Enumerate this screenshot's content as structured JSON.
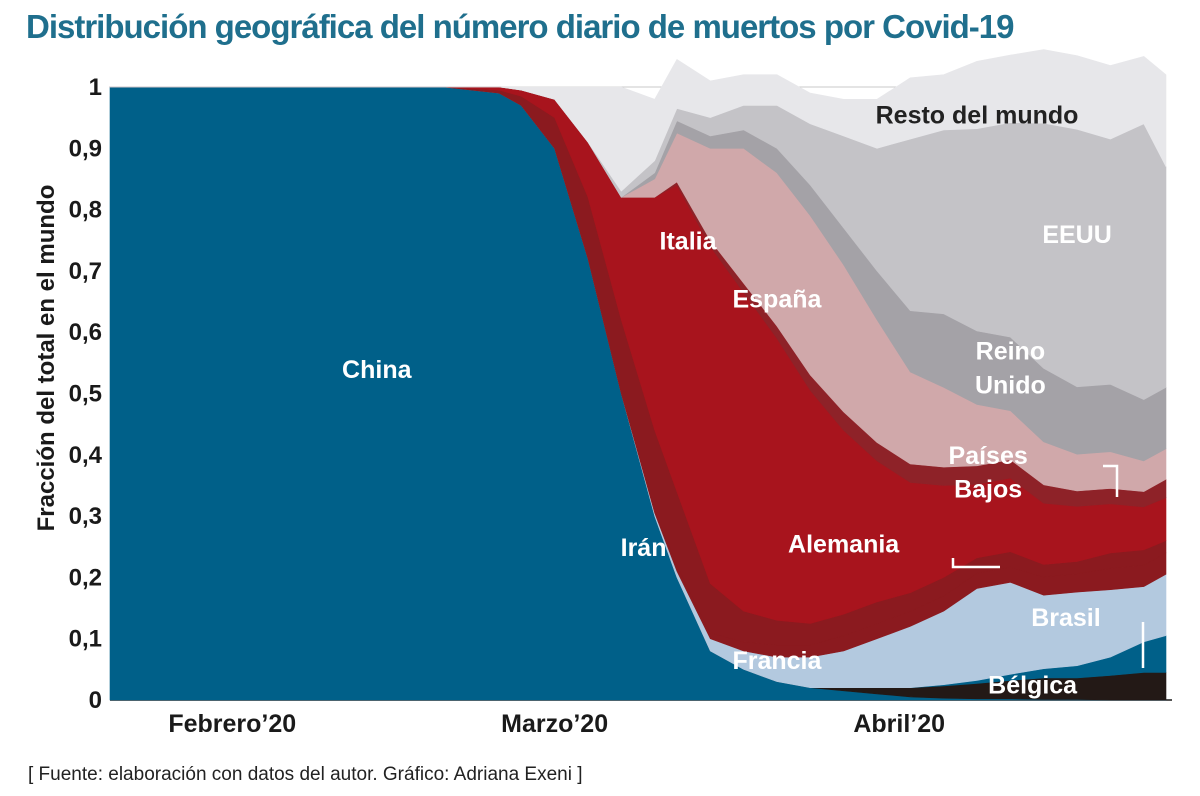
{
  "title": "Distribución geográfica del número diario de muertos por Covid-19",
  "source": "[ Fuente: elaboración con datos del autor. Gráfico: Adriana Exeni ]",
  "colors": {
    "title": "#1f6f8d",
    "label_light": "#ffffff",
    "label_dark": "#222222"
  },
  "chart_data": {
    "type": "area",
    "stacked": true,
    "normalized": true,
    "ylabel": "Fracción del total en el mundo",
    "xlabel": "",
    "ylim": [
      0,
      1
    ],
    "y_ticks": [
      {
        "value": 0,
        "label": "0"
      },
      {
        "value": 0.1,
        "label": "0,1"
      },
      {
        "value": 0.2,
        "label": "0,2"
      },
      {
        "value": 0.3,
        "label": "0,3"
      },
      {
        "value": 0.4,
        "label": "0,4"
      },
      {
        "value": 0.5,
        "label": "0,5"
      },
      {
        "value": 0.6,
        "label": "0,6"
      },
      {
        "value": 0.7,
        "label": "0,7"
      },
      {
        "value": 0.8,
        "label": "0,8"
      },
      {
        "value": 0.9,
        "label": "0,9"
      },
      {
        "value": 1,
        "label": "1"
      }
    ],
    "x_ticks": [
      {
        "date": "2020-02-01",
        "label": "Febrero’20"
      },
      {
        "date": "2020-03-01",
        "label": "Marzo’20"
      },
      {
        "date": "2020-04-01",
        "label": "Abril’20"
      }
    ],
    "grid": "horizontal",
    "x": [
      "2020-01-21",
      "2020-01-26",
      "2020-01-31",
      "2020-02-05",
      "2020-02-10",
      "2020-02-15",
      "2020-02-20",
      "2020-02-25",
      "2020-02-27",
      "2020-03-01",
      "2020-03-04",
      "2020-03-07",
      "2020-03-10",
      "2020-03-12",
      "2020-03-15",
      "2020-03-18",
      "2020-03-21",
      "2020-03-24",
      "2020-03-27",
      "2020-03-30",
      "2020-04-02",
      "2020-04-05",
      "2020-04-08",
      "2020-04-11",
      "2020-04-14",
      "2020-04-17",
      "2020-04-20",
      "2020-04-23",
      "2020-04-25"
    ],
    "series": [
      {
        "name": "China",
        "color": "#006089",
        "label_color": "#ffffff",
        "values": [
          1,
          1,
          1,
          1,
          1,
          1,
          1,
          0.99,
          0.97,
          0.9,
          0.72,
          0.5,
          0.3,
          0.2,
          0.08,
          0.05,
          0.03,
          0.02,
          0.015,
          0.01,
          0.005,
          0.003,
          0.002,
          0.002,
          0.001,
          0.001,
          0,
          0,
          0
        ]
      },
      {
        "name": "Bélgica",
        "color": "#231916",
        "label_color": "#ffffff",
        "values": [
          0,
          0,
          0,
          0,
          0,
          0,
          0,
          0,
          0,
          0,
          0,
          0,
          0,
          0,
          0,
          0,
          0,
          0,
          0.005,
          0.01,
          0.015,
          0.02,
          0.025,
          0.03,
          0.035,
          0.035,
          0.04,
          0.045,
          0.045
        ]
      },
      {
        "name": "Brasil",
        "color": "#006089",
        "label_color": "#ffffff",
        "values": [
          0,
          0,
          0,
          0,
          0,
          0,
          0,
          0,
          0,
          0,
          0,
          0,
          0,
          0,
          0,
          0,
          0,
          0,
          0,
          0,
          0,
          0.002,
          0.005,
          0.01,
          0.015,
          0.02,
          0.03,
          0.05,
          0.06
        ]
      },
      {
        "name": "Francia",
        "color": "#b3c9df",
        "label_color": "#ffffff",
        "values": [
          0,
          0,
          0,
          0,
          0,
          0,
          0,
          0,
          0,
          0,
          0,
          0,
          0.005,
          0.01,
          0.02,
          0.03,
          0.04,
          0.05,
          0.06,
          0.08,
          0.1,
          0.12,
          0.15,
          0.15,
          0.12,
          0.12,
          0.11,
          0.09,
          0.1
        ]
      },
      {
        "name": "Alemania",
        "color": "#8b1a1f",
        "label_color": "#ffffff",
        "values": [
          0,
          0,
          0,
          0,
          0,
          0,
          0,
          0,
          0,
          0,
          0,
          0,
          0.005,
          0.01,
          0.01,
          0.015,
          0.02,
          0.02,
          0.025,
          0.025,
          0.025,
          0.025,
          0.025,
          0.025,
          0.03,
          0.03,
          0.035,
          0.035,
          0.035
        ]
      },
      {
        "name": "Irán",
        "color": "#8b1a1f",
        "label_color": "#ffffff",
        "values": [
          0,
          0,
          0,
          0,
          0,
          0,
          0,
          0.005,
          0.015,
          0.05,
          0.1,
          0.12,
          0.13,
          0.12,
          0.08,
          0.05,
          0.04,
          0.035,
          0.035,
          0.035,
          0.03,
          0.03,
          0.025,
          0.025,
          0.02,
          0.02,
          0.025,
          0.025,
          0.02
        ]
      },
      {
        "name": "Italia",
        "color": "#a8141d",
        "label_color": "#ffffff",
        "values": [
          0,
          0,
          0,
          0,
          0,
          0,
          0,
          0.005,
          0.01,
          0.03,
          0.09,
          0.2,
          0.38,
          0.5,
          0.55,
          0.52,
          0.46,
          0.38,
          0.3,
          0.23,
          0.18,
          0.15,
          0.12,
          0.12,
          0.1,
          0.09,
          0.08,
          0.07,
          0.07
        ]
      },
      {
        "name": "Países Bajos",
        "color": "#8e2228",
        "label_color": "#ffffff",
        "values": [
          0,
          0,
          0,
          0,
          0,
          0,
          0,
          0,
          0,
          0,
          0,
          0,
          0,
          0.005,
          0.01,
          0.015,
          0.02,
          0.025,
          0.03,
          0.03,
          0.03,
          0.03,
          0.03,
          0.03,
          0.03,
          0.025,
          0.025,
          0.025,
          0.03
        ]
      },
      {
        "name": "España",
        "color": "#d0a8aa",
        "label_color": "#ffffff",
        "values": [
          0,
          0,
          0,
          0,
          0,
          0,
          0,
          0,
          0,
          0,
          0,
          0,
          0.03,
          0.08,
          0.15,
          0.22,
          0.25,
          0.26,
          0.24,
          0.2,
          0.15,
          0.13,
          0.1,
          0.08,
          0.07,
          0.06,
          0.06,
          0.05,
          0.05
        ]
      },
      {
        "name": "Reino Unido",
        "color": "#a4a2a7",
        "label_color": "#ffffff",
        "values": [
          0,
          0,
          0,
          0,
          0,
          0,
          0,
          0,
          0,
          0,
          0,
          0,
          0.01,
          0.02,
          0.02,
          0.03,
          0.04,
          0.05,
          0.06,
          0.08,
          0.1,
          0.12,
          0.12,
          0.12,
          0.12,
          0.11,
          0.11,
          0.1,
          0.1
        ]
      },
      {
        "name": "EEUU",
        "color": "#c4c3c7",
        "label_color": "#ffffff",
        "values": [
          0,
          0,
          0,
          0,
          0,
          0,
          0,
          0,
          0,
          0,
          0,
          0.01,
          0.02,
          0.02,
          0.03,
          0.04,
          0.07,
          0.1,
          0.15,
          0.2,
          0.28,
          0.3,
          0.33,
          0.35,
          0.4,
          0.42,
          0.4,
          0.45,
          0.36
        ]
      },
      {
        "name": "Resto del mundo",
        "color": "#e7e7ea",
        "label_color": "#222222",
        "values": [
          0,
          0,
          0,
          0,
          0,
          0,
          0,
          0,
          0.005,
          0.02,
          0.09,
          0.17,
          0.1,
          0.08,
          0.06,
          0.05,
          0.05,
          0.05,
          0.06,
          0.08,
          0.1,
          0.09,
          0.11,
          0.11,
          0.12,
          0.12,
          0.12,
          0.11,
          0.15
        ]
      }
    ],
    "annotations": [
      {
        "text": "China",
        "date": "2020-02-14",
        "y": 0.54
      },
      {
        "text": "Italia",
        "date": "2020-03-13",
        "y": 0.75
      },
      {
        "text": "España",
        "date": "2020-03-21",
        "y": 0.655
      },
      {
        "text": "Irán",
        "date": "2020-03-09",
        "y": 0.25
      },
      {
        "text": "Francia",
        "date": "2020-03-21",
        "y": 0.065
      },
      {
        "text": "Alemania",
        "date": "2020-03-27",
        "y": 0.255
      },
      {
        "text": "Bélgica",
        "date": "2020-04-13",
        "y": 0.025
      },
      {
        "text": "Brasil",
        "date": "2020-04-16",
        "y": 0.135
      },
      {
        "text": "EEUU",
        "date": "2020-04-17",
        "y": 0.76
      },
      {
        "text": "Resto del mundo",
        "date": "2020-04-08",
        "y": 0.955
      },
      {
        "text": "Reino",
        "date": "2020-04-11",
        "y": 0.57
      },
      {
        "text": "Unido",
        "date": "2020-04-11",
        "y": 0.515
      },
      {
        "text": "Países",
        "date": "2020-04-09",
        "y": 0.4
      },
      {
        "text": "Bajos",
        "date": "2020-04-09",
        "y": 0.345
      }
    ]
  }
}
